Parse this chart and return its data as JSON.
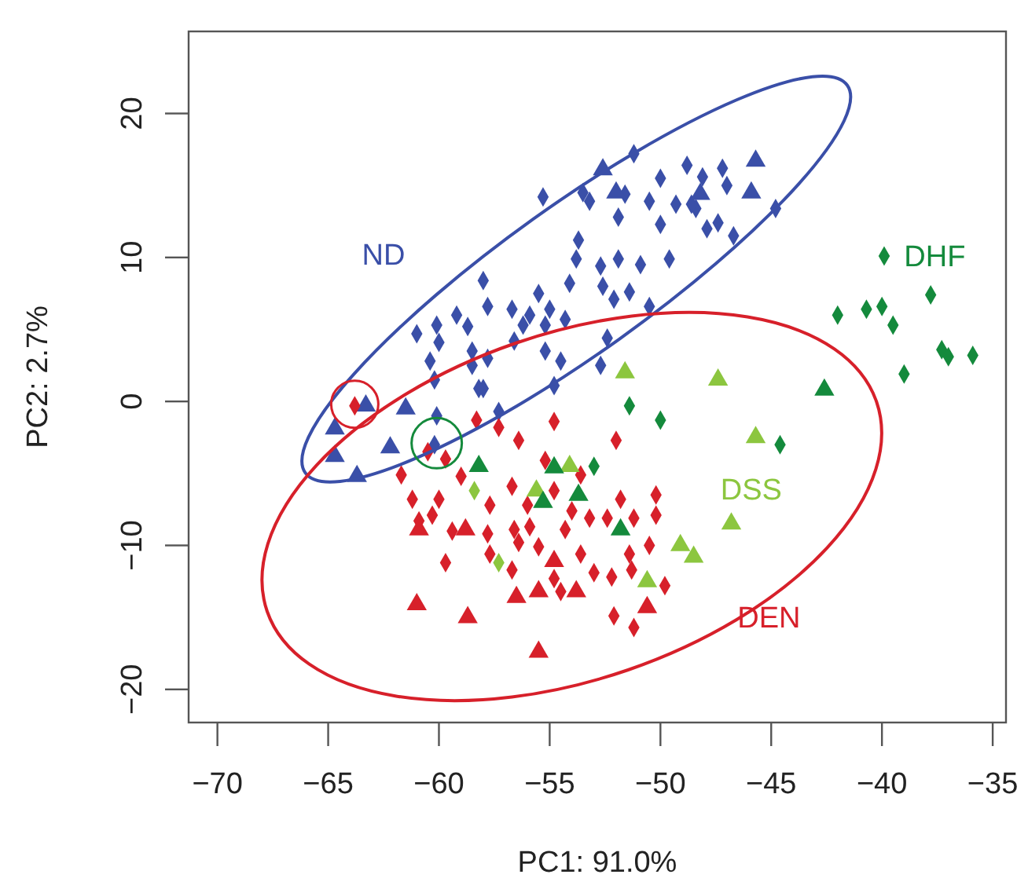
{
  "chart_data": {
    "type": "scatter",
    "xlabel": "PC1: 91.0%",
    "ylabel": "PC2: 2.7%",
    "xlim": [
      -71.3,
      -34.4
    ],
    "ylim": [
      -22.3,
      25.7
    ],
    "xticks": [
      {
        "value": -70,
        "label": "−70"
      },
      {
        "value": -65,
        "label": "−65"
      },
      {
        "value": -60,
        "label": "−60"
      },
      {
        "value": -55,
        "label": "−55"
      },
      {
        "value": -50,
        "label": "−50"
      },
      {
        "value": -45,
        "label": "−45"
      },
      {
        "value": -40,
        "label": "−40"
      },
      {
        "value": -35,
        "label": "−35"
      }
    ],
    "yticks": [
      {
        "value": -20,
        "label": "−20"
      },
      {
        "value": -10,
        "label": "−10"
      },
      0,
      10,
      20
    ],
    "grid": false,
    "legend": false,
    "series": [
      {
        "name": "ND",
        "color": "#3a4fa8",
        "marker": "diamond",
        "x": [
          -51.2,
          -55.3,
          -53.5,
          -53.2,
          -51.6,
          -50.0,
          -48.8,
          -48.1,
          -47.2,
          -47.0,
          -50.5,
          -49.3,
          -48.4,
          -51.9,
          -50.0,
          -47.9,
          -46.7,
          -44.8,
          -53.7,
          -53.8,
          -52.7,
          -51.9,
          -50.9,
          -49.6,
          -58.0,
          -54.1,
          -52.6,
          -51.4,
          -55.5,
          -52.1,
          -50.5,
          -59.2,
          -57.8,
          -56.7,
          -55.9,
          -55.0,
          -54.3,
          -61.0,
          -60.1,
          -58.7,
          -56.2,
          -55.2,
          -56.6,
          -60.0,
          -58.5,
          -57.8,
          -55.2,
          -54.5,
          -52.4,
          -60.4,
          -58.5,
          -60.2,
          -58.0,
          -54.8,
          -52.7,
          -48.6,
          -47.4,
          -58.2,
          -57.3,
          -60.1,
          -60.2
        ],
        "values": [
          17.2,
          14.2,
          14.5,
          13.9,
          14.4,
          15.5,
          16.4,
          15.6,
          16.2,
          15.0,
          13.9,
          13.7,
          13.4,
          12.8,
          12.3,
          12.0,
          11.5,
          13.4,
          11.2,
          9.9,
          9.4,
          9.9,
          9.5,
          9.9,
          8.4,
          8.2,
          8.0,
          7.6,
          7.5,
          7.1,
          6.6,
          6.0,
          6.6,
          6.4,
          6.0,
          6.4,
          5.7,
          4.7,
          5.3,
          5.2,
          5.3,
          5.3,
          4.2,
          4.1,
          3.5,
          3.0,
          3.5,
          2.8,
          4.4,
          2.8,
          2.5,
          1.5,
          0.9,
          1.1,
          2.5,
          13.7,
          12.4,
          0.9,
          -0.7,
          -1.0,
          -3.0
        ]
      },
      {
        "color": "#3a4fa8",
        "marker": "triangle",
        "x": [
          -52.6,
          -52.0,
          -48.2,
          -45.7,
          -45.9,
          -63.3,
          -61.5,
          -64.7,
          -64.7,
          -62.2,
          -63.7
        ],
        "values": [
          16.1,
          14.5,
          14.4,
          16.7,
          14.5,
          -0.3,
          -0.5,
          -1.9,
          -3.8,
          -3.2,
          -5.2
        ]
      },
      {
        "name": "DEN",
        "color": "#d7202a",
        "marker": "diamond",
        "x": [
          -63.8,
          -58.3,
          -57.3,
          -56.4,
          -54.8,
          -52.0,
          -60.5,
          -59.7,
          -61.7,
          -59.0,
          -55.2,
          -53.6,
          -56.7,
          -54.8,
          -51.8,
          -50.2,
          -61.2,
          -60.0,
          null,
          -57.7,
          -56.0,
          -54.0,
          -53.2,
          -52.4,
          -51.2,
          -50.2,
          -60.3,
          -59.4,
          -57.8,
          -56.6,
          -55.9,
          -54.3,
          -56.4,
          -55.5,
          -57.7,
          -53.6,
          -51.4,
          -50.5,
          -59.7,
          -56.7,
          -54.8,
          -53.0,
          -52.2,
          -51.3,
          -49.8,
          -54.5,
          -52.1,
          -51.2,
          -60.9
        ],
        "values": [
          -0.3,
          -1.3,
          -1.8,
          -2.7,
          -1.4,
          -2.7,
          -3.5,
          -4.0,
          -5.1,
          -5.2,
          -4.1,
          -5.1,
          -5.9,
          -6.2,
          -6.8,
          -6.5,
          -6.8,
          -6.8,
          null,
          -7.2,
          -7.2,
          -7.6,
          -8.1,
          -8.1,
          -8.1,
          -7.9,
          -7.9,
          -9.0,
          -9.2,
          -8.9,
          -8.7,
          -8.9,
          -9.8,
          -10.1,
          -10.6,
          -10.6,
          -10.6,
          -10.0,
          -11.2,
          -11.7,
          -12.3,
          -11.9,
          -12.2,
          -11.7,
          -12.8,
          -13.2,
          -14.9,
          -15.7,
          -8.3
        ]
      },
      {
        "color": "#d7202a",
        "marker": "triangle",
        "x": [
          -60.9,
          -58.8,
          -54.8,
          -56.5,
          -55.5,
          -53.8,
          -61.0,
          -58.7,
          -55.5,
          -50.6
        ],
        "values": [
          -8.9,
          -8.9,
          -11.1,
          -13.6,
          -13.2,
          -13.2,
          -14.1,
          -15.0,
          -17.4,
          -14.3
        ]
      },
      {
        "name": "DSS",
        "color": "#8cc63f",
        "marker": "triangle",
        "x": [
          -51.6,
          -47.4,
          -45.7,
          -46.8,
          -49.1,
          -48.5,
          -50.6,
          -54.1,
          -55.6
        ],
        "values": [
          2.0,
          1.5,
          -2.5,
          -8.5,
          -10.0,
          -10.8,
          -12.5,
          -4.5,
          -6.2
        ]
      },
      {
        "color": "#8cc63f",
        "marker": "diamond",
        "x": [
          -58.4,
          -57.3
        ],
        "values": [
          -6.2,
          -11.2
        ]
      },
      {
        "name": "DHF",
        "color": "#148a3c",
        "marker": "diamond",
        "x": [
          -39.9,
          -37.8,
          -42.0,
          -40.7,
          -40.0,
          -39.5,
          -37.3,
          -37.0,
          -35.9,
          -39.0,
          -51.4,
          -50.0,
          -44.6,
          -53.0
        ],
        "values": [
          10.1,
          7.4,
          6.0,
          6.4,
          6.6,
          5.3,
          3.6,
          3.1,
          3.2,
          1.9,
          -0.3,
          -1.3,
          -3.0,
          -4.5
        ]
      },
      {
        "color": "#148a3c",
        "marker": "triangle",
        "x": [
          -42.6,
          -51.8,
          -58.2,
          -54.8,
          -55.3,
          -53.7
        ],
        "values": [
          0.8,
          -8.9,
          -4.5,
          -4.6,
          -7.0,
          -6.5
        ]
      }
    ]
  }
}
